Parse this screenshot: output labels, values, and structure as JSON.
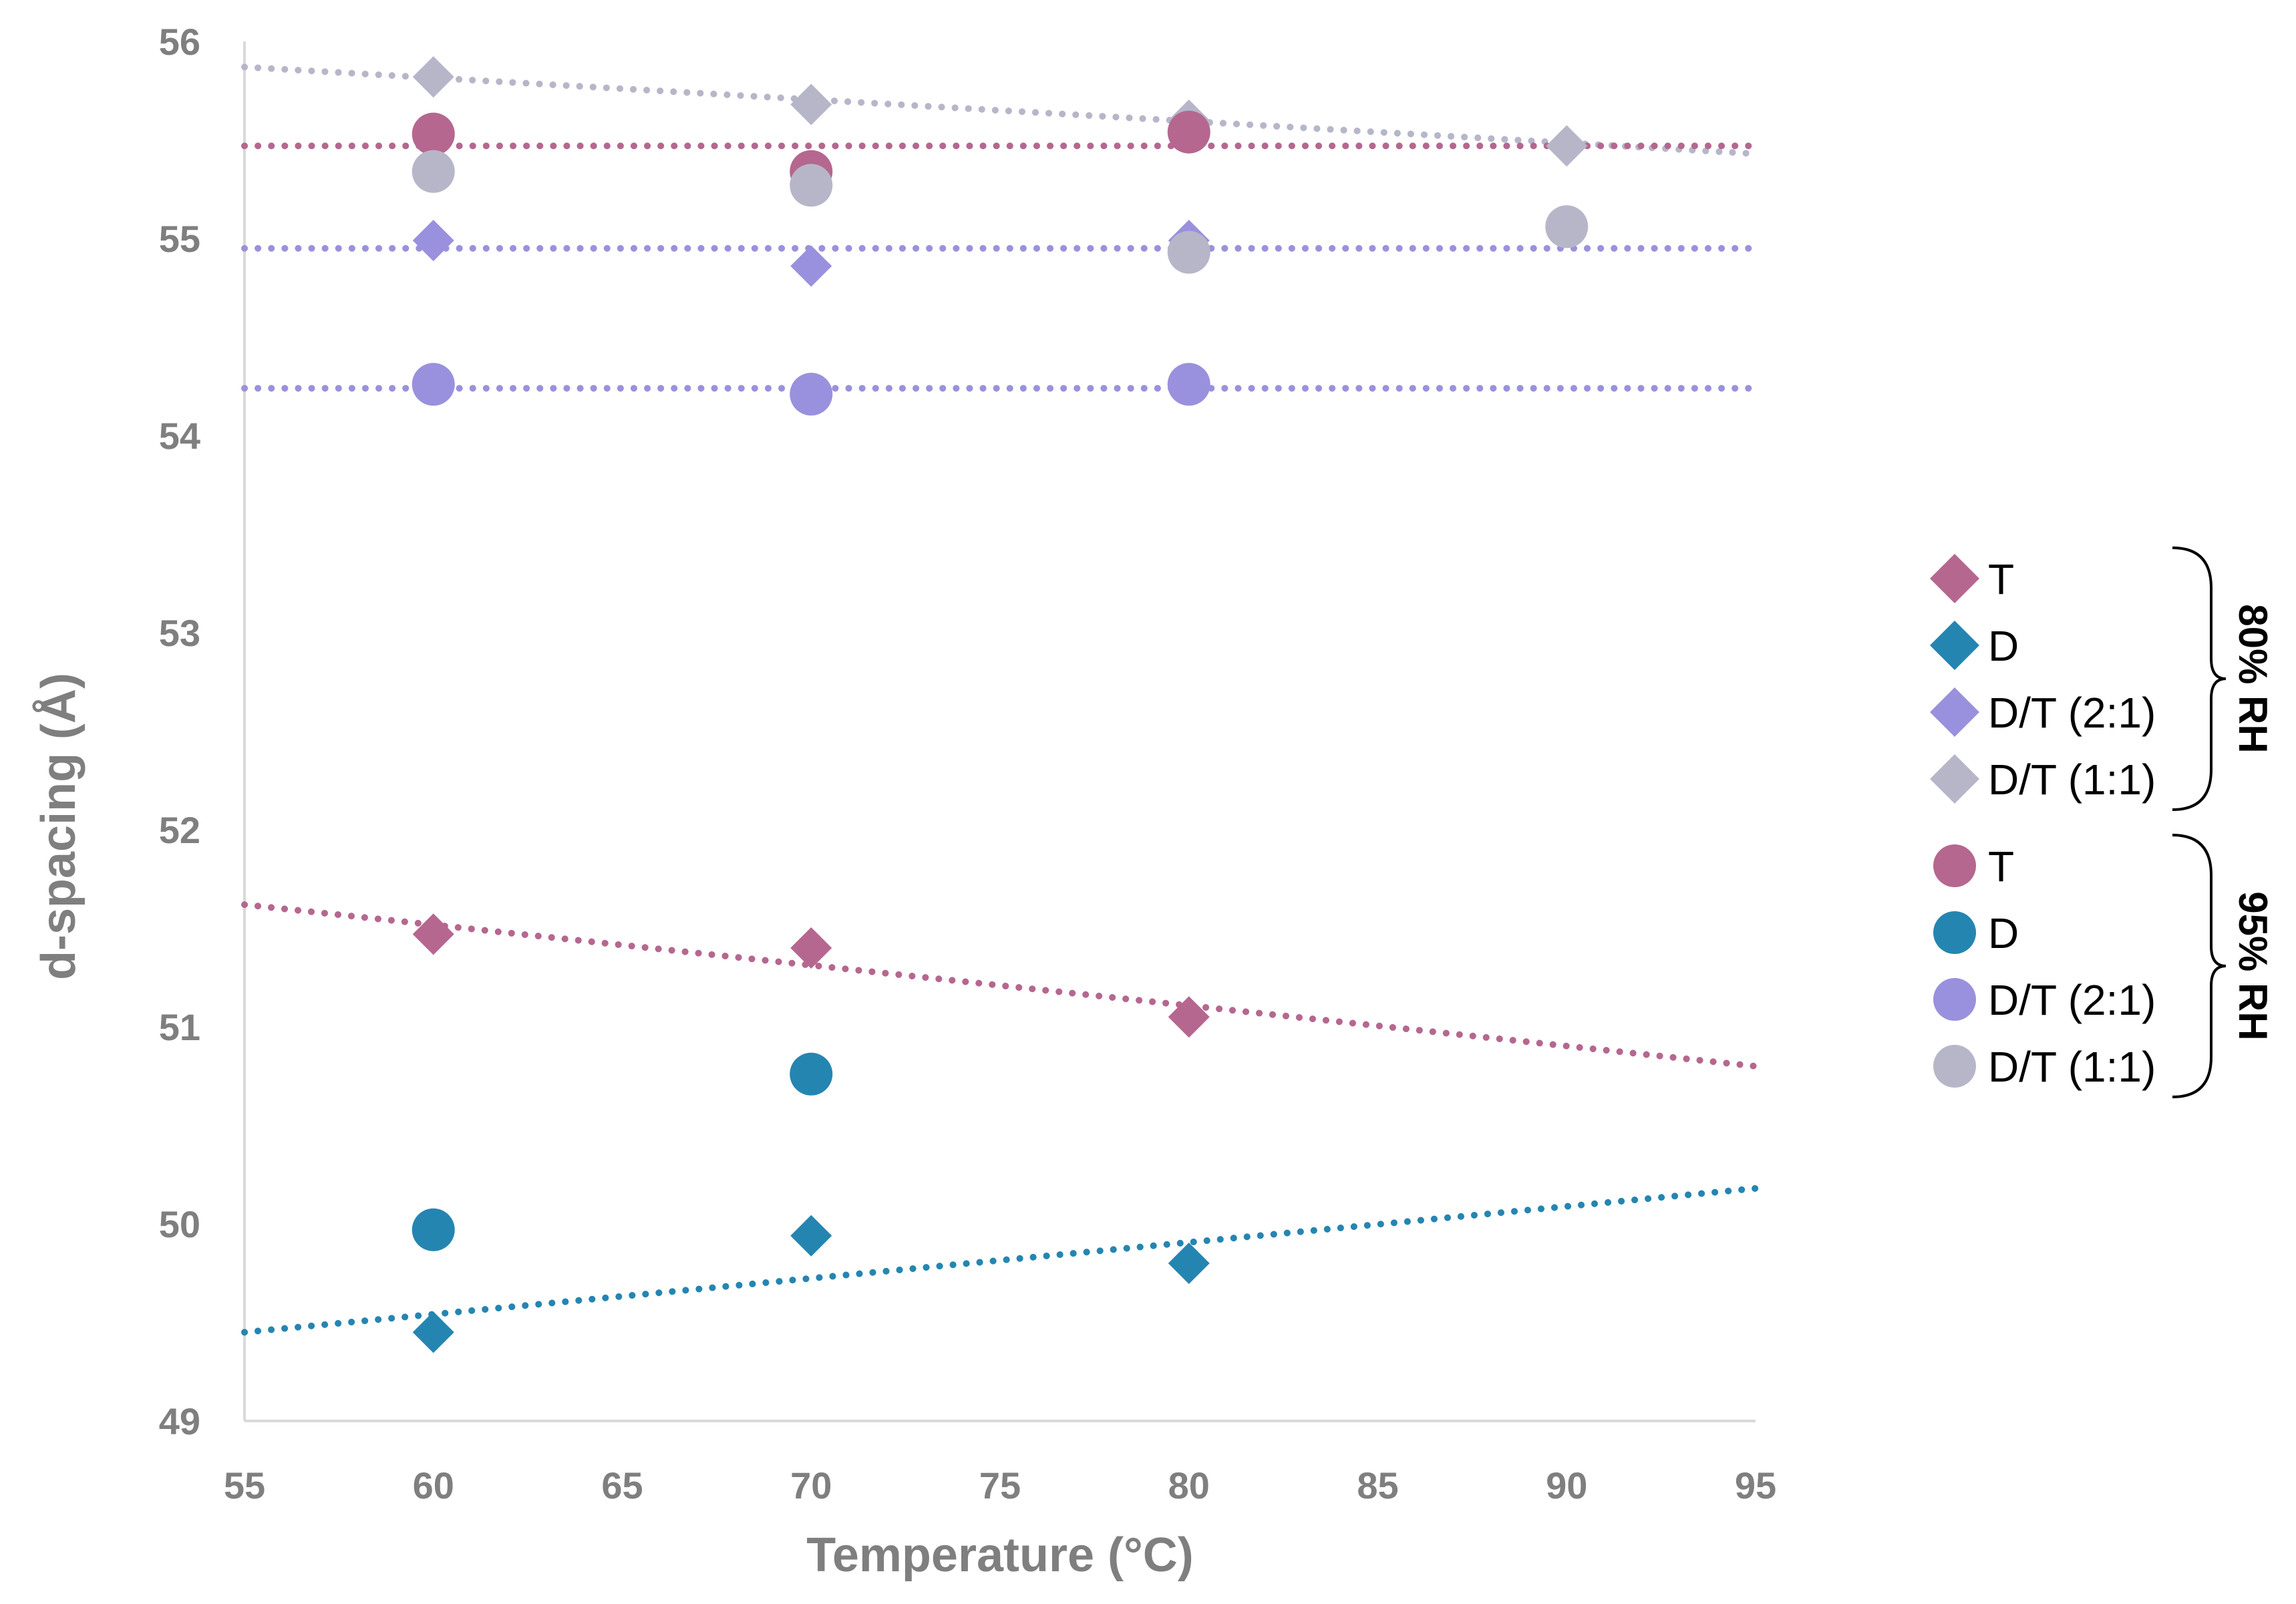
{
  "colors": {
    "T": "#b5678f",
    "D": "#2585b1",
    "DT21": "#9991dd",
    "DT11": "#b7b6c9",
    "axis_text": "#7f7f7f",
    "axis_line": "#d9d9d9"
  },
  "chart_data": {
    "type": "scatter",
    "title": "",
    "xlabel": "Temperature (°C)",
    "ylabel": "d-spacing (Å)",
    "xlim": [
      55,
      95
    ],
    "ylim": [
      49,
      56
    ],
    "xticks": [
      55,
      60,
      65,
      70,
      75,
      80,
      85,
      90,
      95
    ],
    "yticks": [
      49,
      50,
      51,
      52,
      53,
      54,
      55,
      56
    ],
    "legend_position": "right",
    "series": [
      {
        "name": "T",
        "group": "80% RH",
        "marker": "diamond",
        "color_key": "T",
        "x": [
          60,
          70,
          80
        ],
        "y": [
          51.47,
          51.4,
          51.05
        ],
        "trendline": {
          "type": "linear",
          "y_at_55": 51.62,
          "y_at_95": 50.8
        }
      },
      {
        "name": "D",
        "group": "80% RH",
        "marker": "diamond",
        "color_key": "D",
        "x": [
          60,
          70,
          80
        ],
        "y": [
          49.45,
          49.94,
          49.8
        ],
        "trendline": {
          "type": "linear",
          "y_at_55": 49.45,
          "y_at_95": 50.18
        }
      },
      {
        "name": "D/T (2:1)",
        "group": "80% RH",
        "marker": "diamond",
        "color_key": "DT21",
        "x": [
          60,
          70,
          80
        ],
        "y": [
          54.99,
          54.86,
          54.99
        ],
        "trendline": {
          "type": "linear",
          "y_at_55": 54.95,
          "y_at_95": 54.95
        }
      },
      {
        "name": "D/T (1:1)",
        "group": "80% RH",
        "marker": "diamond",
        "color_key": "DT11",
        "x": [
          60,
          70,
          80,
          90
        ],
        "y": [
          55.82,
          55.68,
          55.6,
          55.47
        ],
        "trendline": {
          "type": "linear",
          "y_at_55": 55.87,
          "y_at_95": 55.43
        }
      },
      {
        "name": "T",
        "group": "95% RH",
        "marker": "circle",
        "color_key": "T",
        "x": [
          60,
          70,
          80
        ],
        "y": [
          55.53,
          55.34,
          55.54
        ],
        "trendline": {
          "type": "linear",
          "y_at_55": 55.47,
          "y_at_95": 55.47
        }
      },
      {
        "name": "D",
        "group": "95% RH",
        "marker": "circle",
        "color_key": "D",
        "x": [
          60,
          70
        ],
        "y": [
          49.97,
          50.76
        ],
        "trendline": null
      },
      {
        "name": "D/T (2:1)",
        "group": "95% RH",
        "marker": "circle",
        "color_key": "DT21",
        "x": [
          60,
          70,
          80
        ],
        "y": [
          54.26,
          54.21,
          54.26
        ],
        "trendline": {
          "type": "linear",
          "y_at_55": 54.24,
          "y_at_95": 54.24
        }
      },
      {
        "name": "D/T (1:1)",
        "group": "95% RH",
        "marker": "circle",
        "color_key": "DT11",
        "x": [
          60,
          70,
          80,
          90
        ],
        "y": [
          55.34,
          55.27,
          54.93,
          55.06
        ],
        "trendline": null
      }
    ],
    "legend_groups": [
      {
        "label": "80% RH",
        "entries": [
          {
            "label": "T",
            "marker": "diamond",
            "color_key": "T"
          },
          {
            "label": "D",
            "marker": "diamond",
            "color_key": "D"
          },
          {
            "label": "D/T (2:1)",
            "marker": "diamond",
            "color_key": "DT21"
          },
          {
            "label": "D/T (1:1)",
            "marker": "diamond",
            "color_key": "DT11"
          }
        ]
      },
      {
        "label": "95% RH",
        "entries": [
          {
            "label": "T",
            "marker": "circle",
            "color_key": "T"
          },
          {
            "label": "D",
            "marker": "circle",
            "color_key": "D"
          },
          {
            "label": "D/T (2:1)",
            "marker": "circle",
            "color_key": "DT21"
          },
          {
            "label": "D/T (1:1)",
            "marker": "circle",
            "color_key": "DT11"
          }
        ]
      }
    ]
  }
}
